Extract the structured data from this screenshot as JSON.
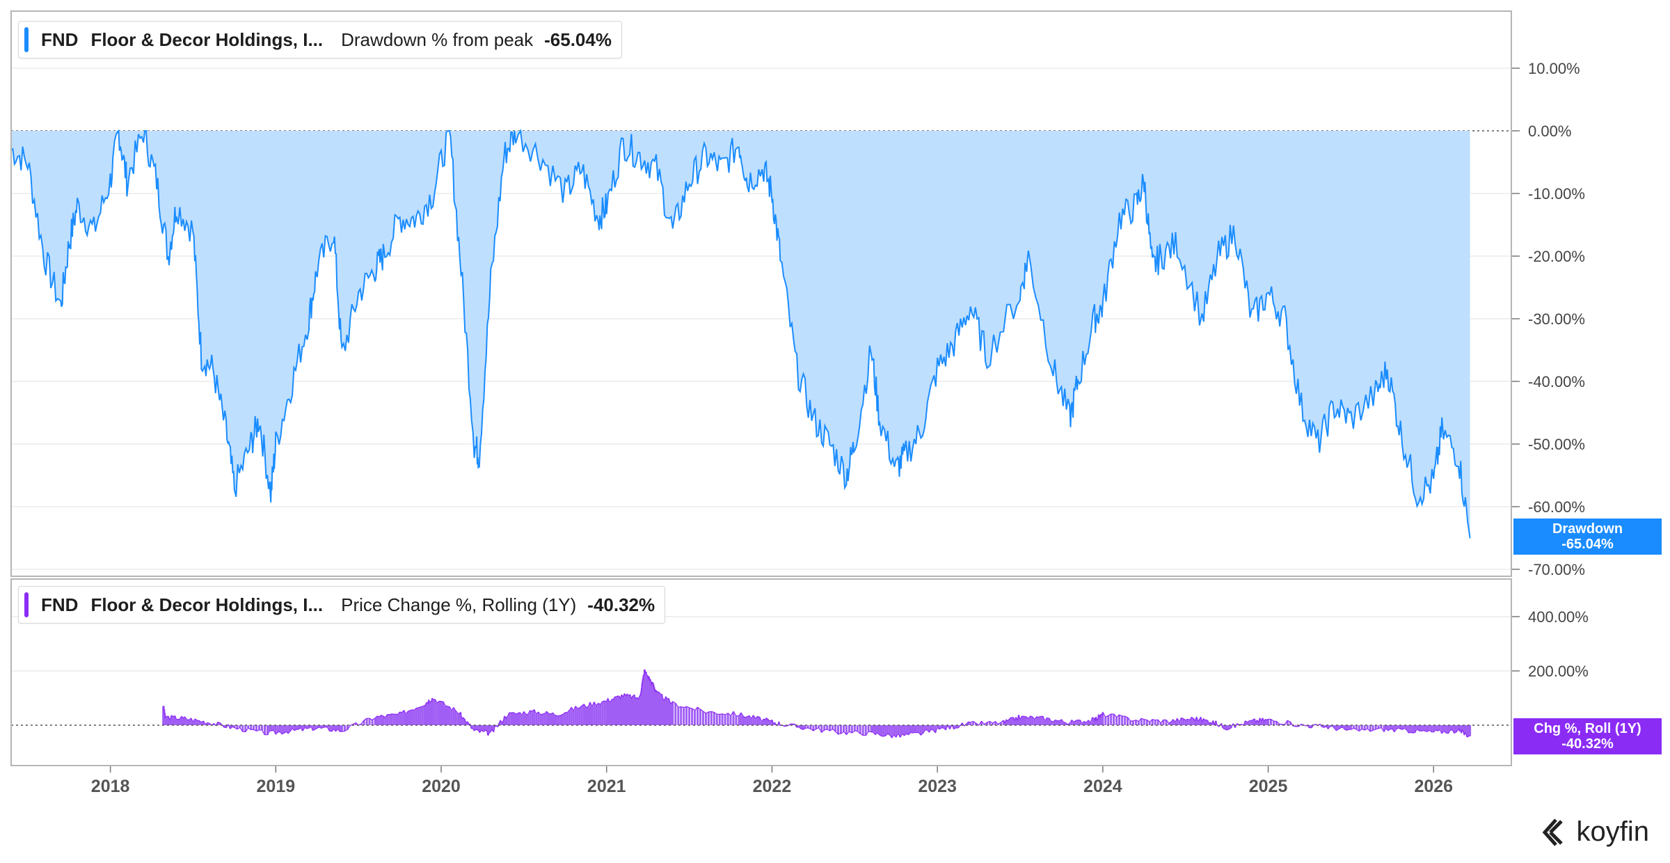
{
  "legend_top": {
    "ticker": "FND",
    "name": "Floor & Decor Holdings, I...",
    "metric": "Drawdown % from peak",
    "value": "-65.04%",
    "color": "#1a8cff"
  },
  "legend_bottom": {
    "ticker": "FND",
    "name": "Floor & Decor Holdings, I...",
    "metric": "Price Change %, Rolling (1Y)",
    "value": "-40.32%",
    "color": "#8b2cf5"
  },
  "tag_top": {
    "line1": "Drawdown",
    "line2": "-65.04%",
    "color": "#1a8cff"
  },
  "tag_bottom": {
    "line1": "Chg %, Roll (1Y)",
    "line2": "-40.32%",
    "color": "#8b2cf5"
  },
  "logo_text": "koyfin",
  "chart_data": [
    {
      "type": "area",
      "title": "Drawdown % from peak",
      "series": [
        {
          "name": "Drawdown",
          "color": "#1a8cff",
          "fill": "#bfdfff",
          "x": [
            2017.4,
            2017.5,
            2017.6,
            2017.7,
            2017.75,
            2017.8,
            2017.9,
            2018.0,
            2018.05,
            2018.1,
            2018.2,
            2018.28,
            2018.35,
            2018.4,
            2018.5,
            2018.55,
            2018.62,
            2018.7,
            2018.75,
            2018.85,
            2018.9,
            2018.97,
            2019.0,
            2019.1,
            2019.2,
            2019.25,
            2019.35,
            2019.4,
            2019.5,
            2019.6,
            2019.65,
            2019.75,
            2019.85,
            2019.95,
            2020.05,
            2020.12,
            2020.2,
            2020.23,
            2020.3,
            2020.38,
            2020.45,
            2020.6,
            2020.75,
            2020.85,
            2020.95,
            2021.0,
            2021.1,
            2021.2,
            2021.3,
            2021.4,
            2021.5,
            2021.6,
            2021.7,
            2021.8,
            2021.85,
            2021.95,
            2022.0,
            2022.05,
            2022.15,
            2022.25,
            2022.35,
            2022.45,
            2022.5,
            2022.6,
            2022.65,
            2022.75,
            2022.8,
            2022.9,
            2023.0,
            2023.1,
            2023.2,
            2023.3,
            2023.5,
            2023.55,
            2023.7,
            2023.8,
            2023.85,
            2023.95,
            2024.0,
            2024.1,
            2024.2,
            2024.25,
            2024.3,
            2024.35,
            2024.45,
            2024.6,
            2024.7,
            2024.8,
            2024.9,
            2025.0,
            2025.1,
            2025.2,
            2025.3,
            2025.4,
            2025.5,
            2025.65,
            2025.72,
            2025.8,
            2025.9,
            2026.0,
            2026.05,
            2026.15,
            2026.22
          ],
          "values": [
            -3,
            -5,
            -20,
            -28,
            -18,
            -12,
            -16,
            -8,
            0,
            -8,
            0,
            -8,
            -20,
            -12,
            -16,
            -36,
            -38,
            -48,
            -57,
            -50,
            -46,
            -58,
            -50,
            -40,
            -30,
            -22,
            -16,
            -36,
            -26,
            -22,
            -20,
            -14,
            -14,
            -10,
            0,
            -22,
            -50,
            -52,
            -24,
            -4,
            0,
            -4,
            -10,
            -6,
            -14,
            -12,
            -2,
            -4,
            -6,
            -16,
            -8,
            -4,
            -6,
            -2,
            -8,
            -6,
            -10,
            -20,
            -38,
            -46,
            -50,
            -55,
            -50,
            -35,
            -46,
            -54,
            -52,
            -48,
            -38,
            -34,
            -28,
            -36,
            -26,
            -20,
            -38,
            -46,
            -40,
            -30,
            -28,
            -14,
            -12,
            -8,
            -22,
            -20,
            -18,
            -30,
            -20,
            -16,
            -30,
            -26,
            -30,
            -44,
            -50,
            -44,
            -46,
            -42,
            -38,
            -48,
            -58,
            -56,
            -48,
            -52,
            -65.04
          ]
        }
      ],
      "xlim": [
        2017.4,
        2026.47
      ],
      "ylim": [
        -70,
        10
      ],
      "y_ticks": [
        "10.00%",
        "0.00%",
        "-10.00%",
        "-20.00%",
        "-30.00%",
        "-40.00%",
        "-50.00%",
        "-60.00%",
        "-70.00%"
      ],
      "y_tick_values": [
        10,
        0,
        -10,
        -20,
        -30,
        -40,
        -50,
        -60,
        -70
      ],
      "grid": true,
      "legend": "top-left"
    },
    {
      "type": "area",
      "title": "Price Change %, Rolling (1Y)",
      "series": [
        {
          "name": "Chg %, Roll (1Y)",
          "color": "#8b2cf5",
          "fill": "#a15ef5",
          "x": [
            2018.32,
            2018.33,
            2018.45,
            2018.6,
            2018.75,
            2018.95,
            2019.1,
            2019.25,
            2019.4,
            2019.6,
            2019.75,
            2019.9,
            2019.95,
            2020.1,
            2020.2,
            2020.3,
            2020.4,
            2020.55,
            2020.7,
            2020.85,
            2021.0,
            2021.1,
            2021.2,
            2021.23,
            2021.28,
            2021.3,
            2021.4,
            2021.6,
            2021.8,
            2021.95,
            2022.05,
            2022.2,
            2022.4,
            2022.6,
            2022.75,
            2022.9,
            2023.05,
            2023.2,
            2023.4,
            2023.5,
            2023.65,
            2023.8,
            2023.95,
            2024.0,
            2024.2,
            2024.4,
            2024.55,
            2024.65,
            2024.75,
            2024.9,
            2025.0,
            2025.2,
            2025.35,
            2025.5,
            2025.7,
            2025.85,
            2026.0,
            2026.15,
            2026.22
          ],
          "values": [
            70,
            30,
            25,
            10,
            -10,
            -30,
            -20,
            -10,
            -20,
            30,
            40,
            80,
            100,
            50,
            -20,
            -30,
            40,
            50,
            40,
            70,
            90,
            110,
            100,
            200,
            150,
            120,
            80,
            50,
            40,
            20,
            5,
            -10,
            -25,
            -30,
            -40,
            -30,
            -10,
            5,
            10,
            30,
            25,
            10,
            20,
            40,
            20,
            15,
            25,
            15,
            -10,
            15,
            20,
            0,
            -5,
            -20,
            -15,
            -20,
            -25,
            -20,
            -40.32
          ]
        }
      ],
      "xlim": [
        2017.4,
        2026.47
      ],
      "ylim": [
        -150,
        400
      ],
      "y_ticks": [
        "400.00%",
        "200.00%"
      ],
      "y_tick_values": [
        400,
        200
      ],
      "x_ticks": [
        "2018",
        "2019",
        "2020",
        "2021",
        "2022",
        "2023",
        "2024",
        "2025",
        "2026"
      ],
      "x_tick_values": [
        2018,
        2019,
        2020,
        2021,
        2022,
        2023,
        2024,
        2025,
        2026
      ],
      "grid": true,
      "legend": "top-left"
    }
  ]
}
